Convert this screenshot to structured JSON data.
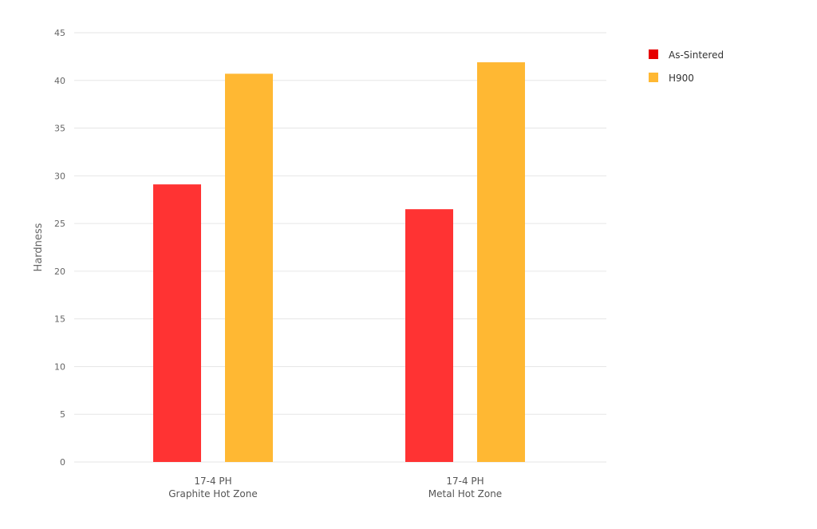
{
  "chart_data": {
    "type": "bar",
    "categories": [
      [
        "17-4 PH",
        "Graphite Hot Zone"
      ],
      [
        "17-4 PH",
        "Metal Hot Zone"
      ]
    ],
    "series": [
      {
        "name": "As-Sintered",
        "values": [
          29.1,
          26.5
        ],
        "color": "#ff3333",
        "legend_color": "#e60000"
      },
      {
        "name": "H900",
        "values": [
          40.7,
          41.9
        ],
        "color": "#ffb833",
        "legend_color": "#ffb833"
      }
    ],
    "title": "",
    "xlabel": "",
    "ylabel": "Hardness",
    "ylim": [
      0,
      45
    ],
    "yticks": [
      0,
      5,
      10,
      15,
      20,
      25,
      30,
      35,
      40,
      45
    ],
    "grid": true,
    "legend_position": "top-right"
  }
}
